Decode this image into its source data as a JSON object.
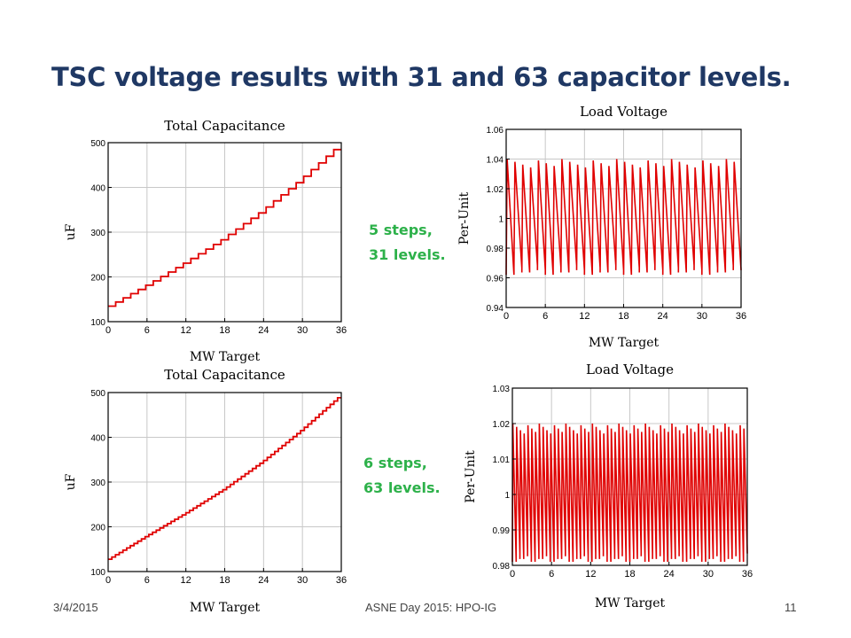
{
  "slide": {
    "title": "TSC voltage results with 31 and 63 capacitor levels.",
    "note_top": [
      "5 steps,",
      "31 levels."
    ],
    "note_bottom": [
      "6 steps,",
      "63 levels."
    ],
    "footer_date": "3/4/2015",
    "footer_center": "ASNE Day 2015: HPO-IG",
    "footer_page": "11"
  },
  "colors": {
    "title": "#1f3864",
    "series": "#e00000",
    "note": "#2db14a",
    "grid": "#c8c8c8"
  },
  "chart_data": [
    {
      "id": "cap31",
      "type": "line",
      "title": "Total Capacitance",
      "xlabel": "MW Target",
      "ylabel": "uF",
      "xlim": [
        0,
        36
      ],
      "ylim": [
        100,
        500
      ],
      "xticks": [
        0,
        6,
        12,
        18,
        24,
        30,
        36
      ],
      "yticks": [
        100,
        200,
        300,
        400,
        500
      ],
      "ytick_labels": [
        "100",
        "200",
        "300",
        "400",
        "500"
      ],
      "grid": true,
      "step": true,
      "levels": 31,
      "x": [
        0,
        6,
        12,
        18,
        24,
        30,
        36
      ],
      "y": [
        130,
        178,
        229,
        283,
        345,
        415,
        492
      ]
    },
    {
      "id": "volt31",
      "type": "line",
      "title": "Load Voltage",
      "xlabel": "MW Target",
      "ylabel": "Per-Unit",
      "xlim": [
        0,
        36
      ],
      "ylim": [
        0.94,
        1.06
      ],
      "xticks": [
        0,
        6,
        12,
        18,
        24,
        30,
        36
      ],
      "yticks": [
        0.94,
        0.96,
        0.98,
        1.0,
        1.02,
        1.04,
        1.06
      ],
      "ytick_labels": [
        "0.94",
        "0.96",
        "0.98",
        "1",
        "1.02",
        "1.04",
        "1.06"
      ],
      "grid": true,
      "sawtooth": true,
      "cycles": 30,
      "y_high": 1.04,
      "y_low": 0.962
    },
    {
      "id": "cap63",
      "type": "line",
      "title": "Total Capacitance",
      "xlabel": "MW Target",
      "ylabel": "uF",
      "xlim": [
        0,
        36
      ],
      "ylim": [
        100,
        500
      ],
      "xticks": [
        0,
        6,
        12,
        18,
        24,
        30,
        36
      ],
      "yticks": [
        100,
        200,
        300,
        400,
        500
      ],
      "ytick_labels": [
        "100",
        "200",
        "300",
        "400",
        "500"
      ],
      "grid": true,
      "step": true,
      "levels": 63,
      "x": [
        0,
        6,
        12,
        18,
        24,
        30,
        36
      ],
      "y": [
        125,
        178,
        229,
        283,
        345,
        415,
        492
      ]
    },
    {
      "id": "volt63",
      "type": "line",
      "title": "Load Voltage",
      "xlabel": "MW Target",
      "ylabel": "Per-Unit",
      "xlim": [
        0,
        36
      ],
      "ylim": [
        0.98,
        1.03
      ],
      "xticks": [
        0,
        6,
        12,
        18,
        24,
        30,
        36
      ],
      "yticks": [
        0.98,
        0.99,
        1.0,
        1.01,
        1.02,
        1.03
      ],
      "ytick_labels": [
        "0.98",
        "0.99",
        "1",
        "1.01",
        "1.02",
        "1.03"
      ],
      "grid": true,
      "sawtooth": true,
      "cycles": 62,
      "y_high": 1.02,
      "y_low": 0.981
    }
  ]
}
